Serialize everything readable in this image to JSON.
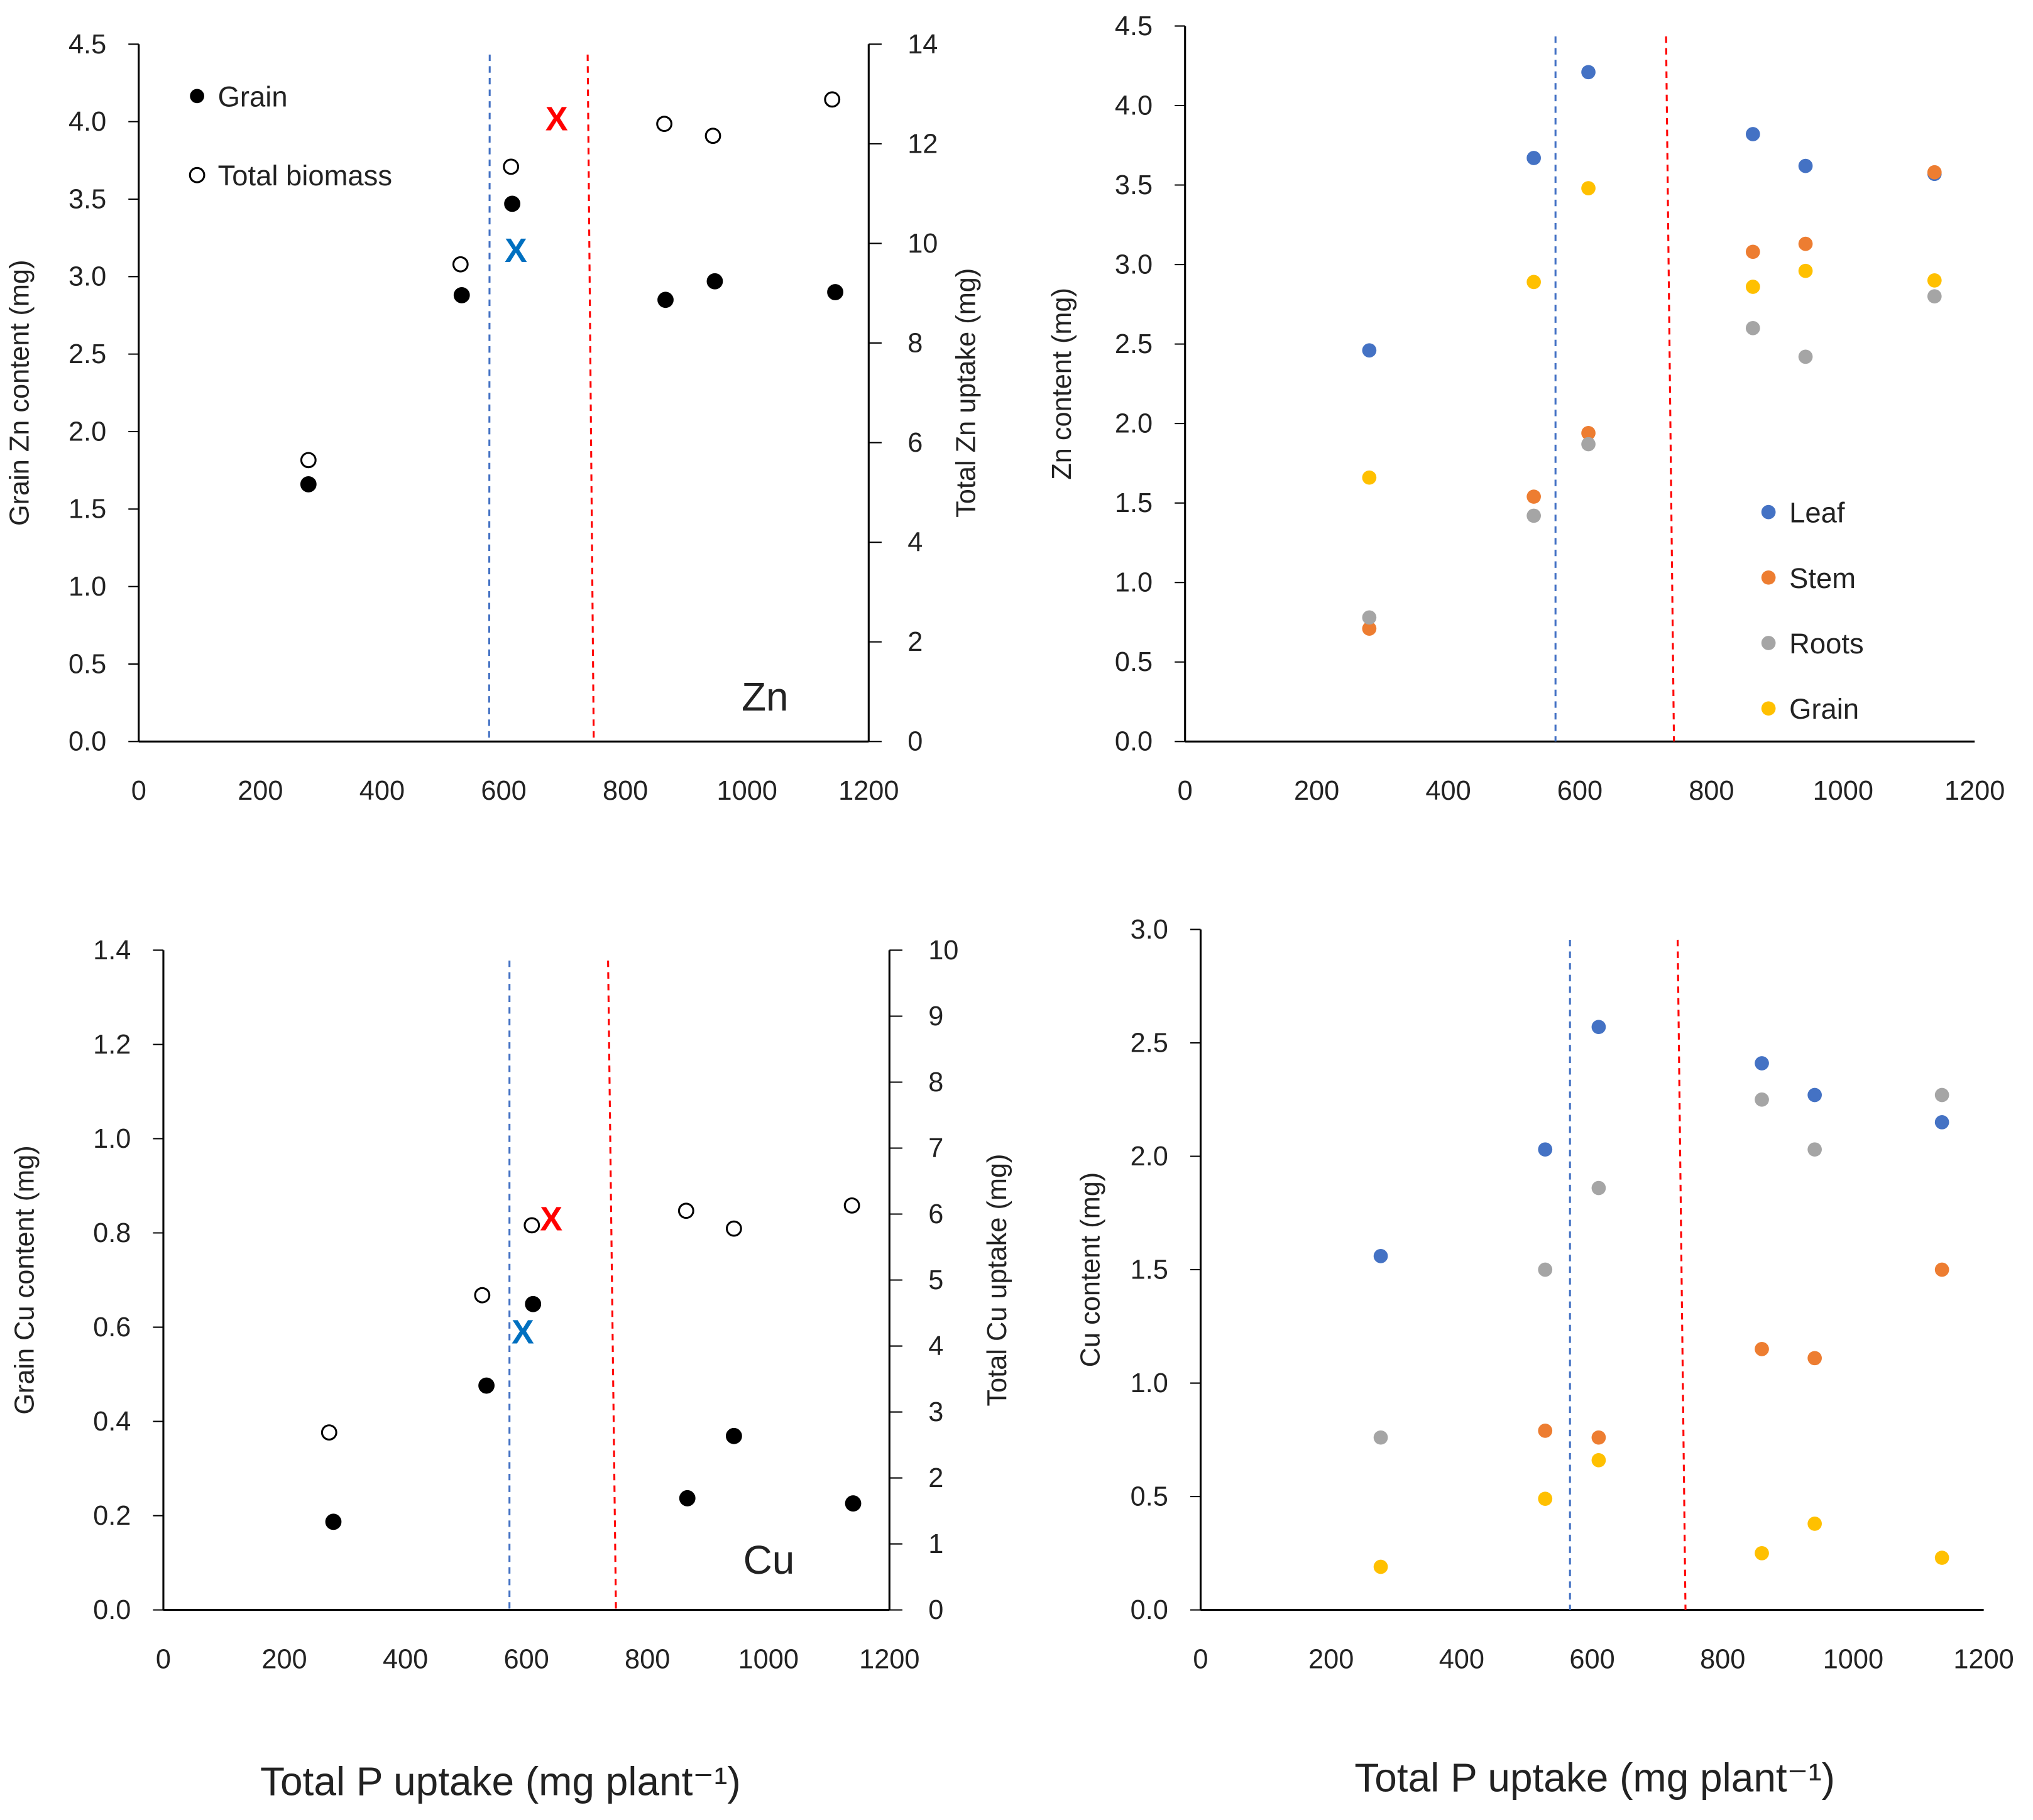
{
  "colors": {
    "leaf": "#4472C4",
    "stem": "#ED7D31",
    "roots": "#A5A5A5",
    "grain": "#FFC000",
    "blue_line": "#4472C4",
    "red_line": "#FF0000",
    "blue_x": "#0070C0",
    "red_x": "#FF0000"
  },
  "shared_xlabel": "Total P uptake (mg plant⁻¹)",
  "chart_data": [
    {
      "type": "scatter",
      "id": "zn-grain",
      "annotation": "Zn",
      "ylabel": "Grain Zn  content (mg)",
      "y2label": "Total Zn uptake (mg)",
      "xlim": [
        0,
        1200
      ],
      "xticks": [
        0,
        200,
        400,
        600,
        800,
        1000,
        1200
      ],
      "ylim": [
        0,
        4.5
      ],
      "yticks": [
        "0.0",
        "0.5",
        "1.0",
        "1.5",
        "2.0",
        "2.5",
        "3.0",
        "3.5",
        "4.0",
        "4.5"
      ],
      "y2lim": [
        0,
        14
      ],
      "y2ticks": [
        "0",
        "2",
        "4",
        "6",
        "8",
        "10",
        "12",
        "14"
      ],
      "legend": [
        "Grain",
        "Total biomass"
      ],
      "series": [
        {
          "name": "Grain",
          "axis": "left",
          "marker": "filled",
          "x": [
            279,
            531,
            614,
            866,
            947,
            1145
          ],
          "y": [
            1.66,
            2.88,
            3.47,
            2.85,
            2.97,
            2.9
          ]
        },
        {
          "name": "Total biomass",
          "axis": "right",
          "marker": "open",
          "x": [
            279,
            529,
            612,
            864,
            944,
            1140
          ],
          "y": [
            5.65,
            9.58,
            11.54,
            12.4,
            12.16,
            12.89
          ]
        }
      ],
      "crosses": [
        {
          "color": "blue",
          "x": 620,
          "y": 3.17,
          "label": "X"
        },
        {
          "color": "red",
          "x": 687,
          "y": 4.02,
          "label": "X"
        }
      ],
      "vlines": [
        {
          "color": "blue",
          "x": [
            577,
            576
          ]
        },
        {
          "color": "red",
          "x": [
            738,
            748
          ]
        }
      ]
    },
    {
      "type": "scatter",
      "id": "zn-organs",
      "ylabel": "Zn content (mg)",
      "xlim": [
        0,
        1200
      ],
      "xticks": [
        0,
        200,
        400,
        600,
        800,
        1000,
        1200
      ],
      "ylim": [
        0,
        4.5
      ],
      "yticks": [
        "0.0",
        "0.5",
        "1.0",
        "1.5",
        "2.0",
        "2.5",
        "3.0",
        "3.5",
        "4.0",
        "4.5"
      ],
      "legend": [
        "Leaf",
        "Stem",
        "Roots",
        "Grain"
      ],
      "series": [
        {
          "name": "Leaf",
          "color": "leaf",
          "x": [
            280,
            530,
            613,
            863,
            943,
            1139
          ],
          "y": [
            2.46,
            3.67,
            4.21,
            3.82,
            3.62,
            3.57
          ]
        },
        {
          "name": "Stem",
          "color": "stem",
          "x": [
            280,
            530,
            613,
            863,
            943,
            1139
          ],
          "y": [
            0.71,
            1.54,
            1.94,
            3.08,
            3.13,
            3.58
          ]
        },
        {
          "name": "Roots",
          "color": "roots",
          "x": [
            280,
            530,
            613,
            863,
            943,
            1139
          ],
          "y": [
            0.78,
            1.42,
            1.87,
            2.6,
            2.42,
            2.8
          ]
        },
        {
          "name": "Grain",
          "color": "grain",
          "x": [
            280,
            530,
            613,
            863,
            943,
            1139
          ],
          "y": [
            1.66,
            2.89,
            3.48,
            2.86,
            2.96,
            2.9
          ]
        }
      ],
      "vlines": [
        {
          "color": "blue",
          "x": [
            563,
            563
          ]
        },
        {
          "color": "red",
          "x": [
            731,
            743
          ]
        }
      ]
    },
    {
      "type": "scatter",
      "id": "cu-grain",
      "annotation": "Cu",
      "ylabel": "Grain Cu  content (mg)",
      "y2label": "Total Cu uptake (mg)",
      "xlim": [
        0,
        1200
      ],
      "xticks": [
        0,
        200,
        400,
        600,
        800,
        1000,
        1200
      ],
      "ylim": [
        0,
        1.4
      ],
      "yticks": [
        "0.0",
        "0.2",
        "0.4",
        "0.6",
        "0.8",
        "1.0",
        "1.2",
        "1.4"
      ],
      "y2lim": [
        0,
        10
      ],
      "y2ticks": [
        "0",
        "1",
        "2",
        "3",
        "4",
        "5",
        "6",
        "7",
        "8",
        "9",
        "10"
      ],
      "legend": [],
      "series": [
        {
          "name": "Grain",
          "axis": "left",
          "marker": "filled",
          "x": [
            281,
            534,
            611,
            866,
            943,
            1140
          ],
          "y": [
            0.187,
            0.476,
            0.649,
            0.237,
            0.369,
            0.226
          ]
        },
        {
          "name": "Total biomass",
          "axis": "right",
          "marker": "open",
          "x": [
            274,
            527,
            609,
            864,
            943,
            1138
          ],
          "y": [
            2.69,
            4.77,
            5.83,
            6.05,
            5.78,
            6.13
          ]
        }
      ],
      "crosses": [
        {
          "color": "blue",
          "x": 594,
          "y": 0.59,
          "label": "X"
        },
        {
          "color": "red",
          "x": 641,
          "y": 0.83,
          "label": "X"
        }
      ],
      "vlines": [
        {
          "color": "blue",
          "x": [
            572,
            572
          ]
        },
        {
          "color": "red",
          "x": [
            735,
            748
          ]
        }
      ]
    },
    {
      "type": "scatter",
      "id": "cu-organs",
      "ylabel": "Cu content (mg)",
      "xlim": [
        0,
        1200
      ],
      "xticks": [
        0,
        200,
        400,
        600,
        800,
        1000,
        1200
      ],
      "ylim": [
        0,
        3.0
      ],
      "yticks": [
        "0.0",
        "0.5",
        "1.0",
        "1.5",
        "2.0",
        "2.5",
        "3.0"
      ],
      "legend": [],
      "series": [
        {
          "name": "Leaf",
          "color": "leaf",
          "x": [
            276,
            528,
            610,
            860,
            941,
            1136
          ],
          "y": [
            1.56,
            2.03,
            2.57,
            2.41,
            2.27,
            2.15
          ]
        },
        {
          "name": "Stem",
          "color": "stem",
          "x": [
            528,
            610,
            860,
            941,
            1136
          ],
          "y": [
            0.79,
            0.76,
            1.15,
            1.11,
            1.5
          ]
        },
        {
          "name": "Roots",
          "color": "roots",
          "x": [
            276,
            528,
            610,
            860,
            941,
            1136
          ],
          "y": [
            0.76,
            1.5,
            1.86,
            2.25,
            2.03,
            2.27
          ]
        },
        {
          "name": "Grain",
          "color": "grain",
          "x": [
            276,
            528,
            610,
            860,
            941,
            1136
          ],
          "y": [
            0.19,
            0.49,
            0.66,
            0.25,
            0.38,
            0.23
          ]
        }
      ],
      "vlines": [
        {
          "color": "blue",
          "x": [
            566,
            566
          ]
        },
        {
          "color": "red",
          "x": [
            731,
            743
          ]
        }
      ]
    }
  ]
}
